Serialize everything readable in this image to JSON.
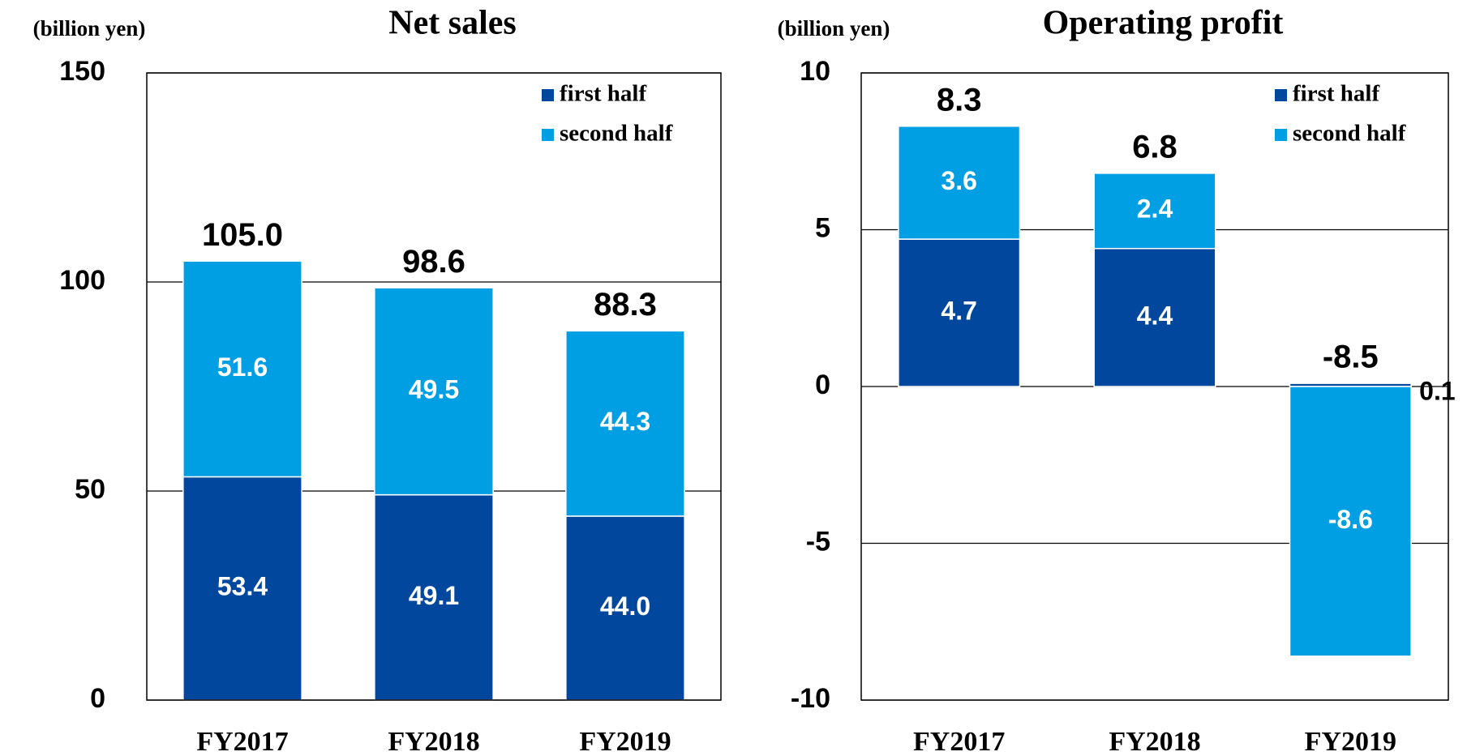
{
  "chart_data": [
    {
      "type": "stacked_bar",
      "title": "Net sales",
      "y_label": "(billion yen)",
      "categories": [
        "FY2017",
        "FY2018",
        "FY2019"
      ],
      "series": [
        {
          "name": "first half",
          "color": "#00479d",
          "values": [
            53.4,
            49.1,
            44.0
          ],
          "value_labels": [
            "53.4",
            "49.1",
            "44.0"
          ]
        },
        {
          "name": "second half",
          "color": "#009fe3",
          "values": [
            51.6,
            49.5,
            44.3
          ],
          "value_labels": [
            "51.6",
            "49.5",
            "44.3"
          ]
        }
      ],
      "totals": [
        105.0,
        98.6,
        88.3
      ],
      "total_labels": [
        "105.0",
        "98.6",
        "88.3"
      ],
      "ylim": [
        0,
        150
      ],
      "yticks": [
        0,
        50,
        100,
        150
      ],
      "grid": true,
      "legend": "upper right"
    },
    {
      "type": "stacked_bar",
      "title": "Operating profit",
      "y_label": "(billion yen)",
      "categories": [
        "FY2017",
        "FY2018",
        "FY2019"
      ],
      "series": [
        {
          "name": "first half",
          "color": "#00479d",
          "values": [
            4.7,
            4.4,
            0.1
          ]
        },
        {
          "name": "second half",
          "color": "#009fe3",
          "values": [
            3.6,
            2.4,
            -8.6
          ]
        }
      ],
      "totals": [
        8.3,
        6.8,
        -8.5
      ],
      "ylim": [
        -10,
        10
      ],
      "yticks": [
        -10,
        -5,
        0,
        5,
        10
      ],
      "grid": true,
      "legend": "upper right"
    }
  ]
}
